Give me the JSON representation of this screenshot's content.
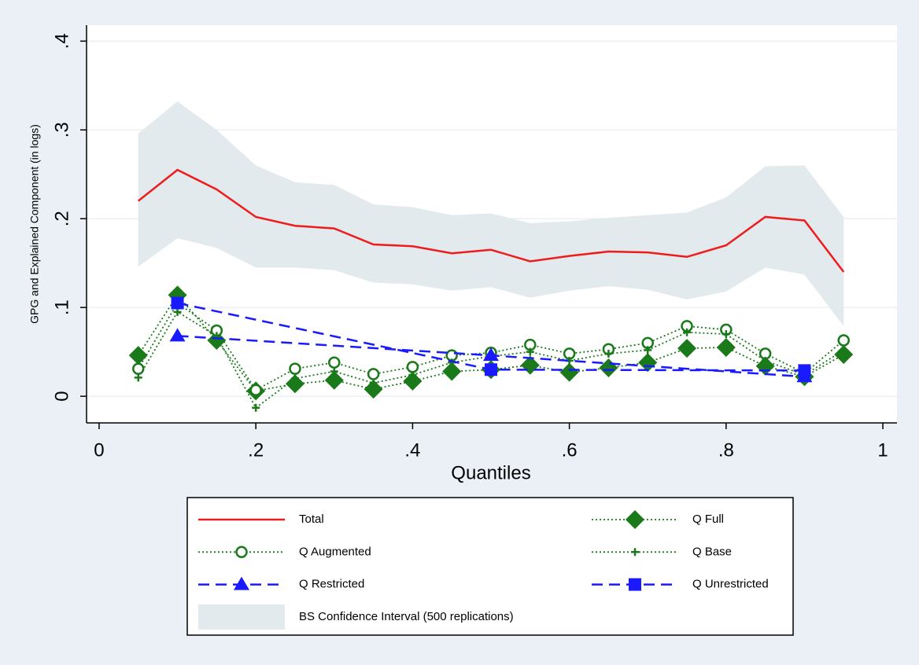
{
  "chart_data": {
    "type": "line",
    "y_label": "GPG and Explained Component (in logs)",
    "x_label": "Quantiles",
    "x": [
      0.05,
      0.1,
      0.15,
      0.2,
      0.25,
      0.3,
      0.35,
      0.4,
      0.45,
      0.5,
      0.55,
      0.6,
      0.65,
      0.7,
      0.75,
      0.8,
      0.85,
      0.9,
      0.95
    ],
    "xlim": [
      -0.016,
      1.018
    ],
    "xticks": [
      0,
      {
        "value": 0.2,
        "label": ".2"
      },
      {
        "value": 0.4,
        "label": ".4"
      },
      {
        "value": 0.6,
        "label": ".6"
      },
      {
        "value": 0.8,
        "label": ".8"
      },
      1
    ],
    "ylim": [
      -0.03,
      0.418
    ],
    "yticks": [
      0,
      {
        "value": 0.1,
        "label": ".1"
      },
      {
        "value": 0.2,
        "label": ".2"
      },
      {
        "value": 0.3,
        "label": ".3"
      },
      {
        "value": 0.4,
        "label": ".4"
      }
    ],
    "grid": true,
    "interval": {
      "name": "BS Confidence Interval (500 replications)",
      "color": "#e2eaee",
      "upper": [
        0.296,
        0.332,
        0.3,
        0.26,
        0.241,
        0.238,
        0.216,
        0.213,
        0.204,
        0.206,
        0.195,
        0.197,
        0.201,
        0.204,
        0.207,
        0.224,
        0.259,
        0.26,
        0.202
      ],
      "lower": [
        0.146,
        0.178,
        0.167,
        0.145,
        0.145,
        0.142,
        0.128,
        0.126,
        0.119,
        0.123,
        0.111,
        0.119,
        0.124,
        0.12,
        0.109,
        0.118,
        0.145,
        0.137,
        0.079
      ]
    },
    "series": [
      {
        "name": "Total",
        "color": "#ee1c1c",
        "dash": "solid",
        "marker": "none",
        "values": [
          0.22,
          0.255,
          0.233,
          0.202,
          0.192,
          0.189,
          0.171,
          0.169,
          0.161,
          0.165,
          0.152,
          0.158,
          0.163,
          0.162,
          0.157,
          0.17,
          0.202,
          0.198,
          0.14
        ]
      },
      {
        "name": "Q Full",
        "color": "#1a7a1a",
        "dash": "dotted",
        "marker": "diamond",
        "values": [
          0.046,
          0.114,
          0.063,
          0.006,
          0.014,
          0.018,
          0.008,
          0.017,
          0.028,
          0.03,
          0.035,
          0.027,
          0.032,
          0.038,
          0.054,
          0.055,
          0.034,
          0.022,
          0.047
        ]
      },
      {
        "name": "Q Augmented",
        "color": "#1a7a1a",
        "dash": "dotted",
        "marker": "circle",
        "values": [
          0.031,
          0.105,
          0.074,
          0.007,
          0.031,
          0.038,
          0.025,
          0.033,
          0.046,
          0.049,
          0.058,
          0.048,
          0.053,
          0.06,
          0.079,
          0.075,
          0.048,
          0.026,
          0.063
        ]
      },
      {
        "name": "Q Base",
        "color": "#1a7a1a",
        "dash": "dotted",
        "marker": "plus",
        "values": [
          0.021,
          0.095,
          0.068,
          -0.013,
          0.02,
          0.028,
          0.015,
          0.024,
          0.038,
          0.045,
          0.05,
          0.04,
          0.048,
          0.052,
          0.072,
          0.07,
          0.04,
          0.024,
          0.052
        ]
      },
      {
        "name": "Q Restricted",
        "color": "#1a1aff",
        "dash": "dashed",
        "marker": "triangle",
        "x": [
          0.1,
          0.5,
          0.9
        ],
        "values": [
          0.068,
          0.046,
          0.022
        ]
      },
      {
        "name": "Q Unrestricted",
        "color": "#1a1aff",
        "dash": "dashed",
        "marker": "square",
        "x": [
          0.1,
          0.5,
          0.9
        ],
        "values": [
          0.105,
          0.03,
          0.029
        ]
      }
    ]
  }
}
